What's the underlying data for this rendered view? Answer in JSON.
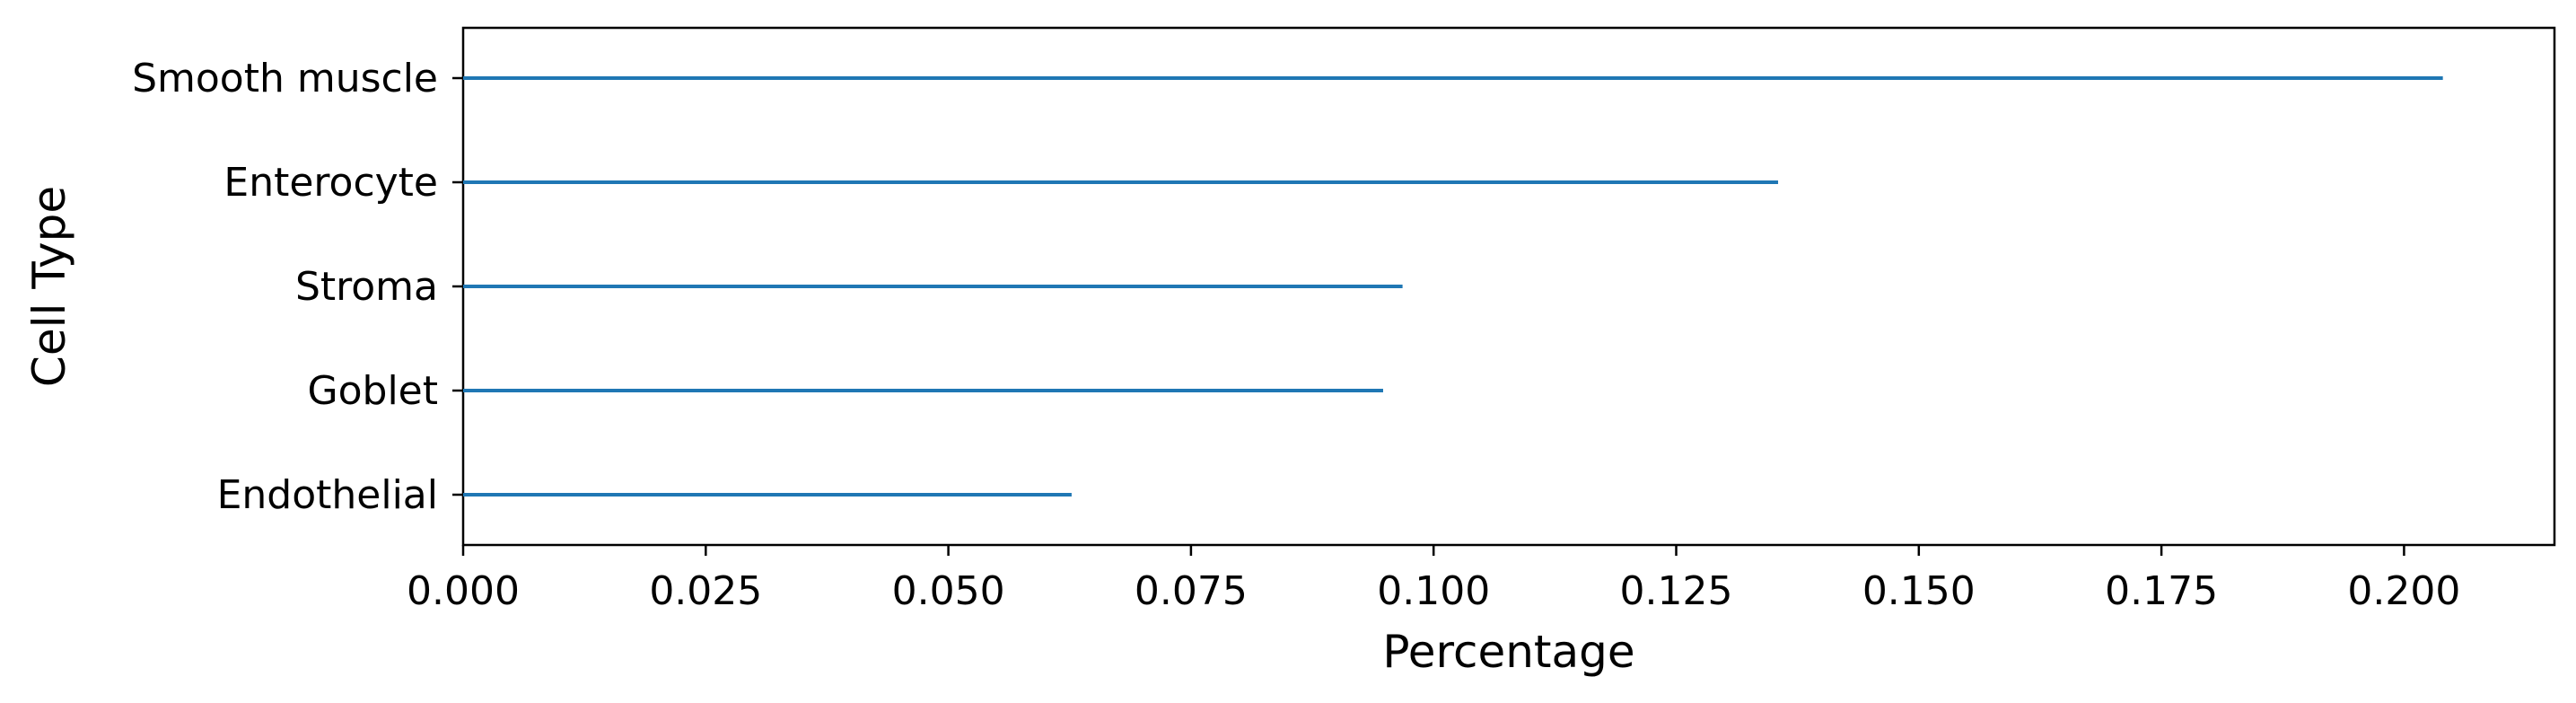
{
  "chart_data": {
    "type": "bar",
    "orientation": "horizontal",
    "style": "line-bars",
    "categories": [
      "Smooth muscle",
      "Enterocyte",
      "Stroma",
      "Goblet",
      "Endothelial"
    ],
    "values": [
      0.204,
      0.1355,
      0.0968,
      0.0948,
      0.0627
    ],
    "xlabel": "Percentage",
    "ylabel": "Cell Type",
    "xlim": [
      0,
      0.2155
    ],
    "xticks": [
      "0.000",
      "0.025",
      "0.050",
      "0.075",
      "0.100",
      "0.125",
      "0.150",
      "0.175",
      "0.200"
    ],
    "xtick_values": [
      0,
      0.025,
      0.05,
      0.075,
      0.1,
      0.125,
      0.15,
      0.175,
      0.2
    ],
    "grid": false,
    "bar_color": "#1f77b4"
  }
}
